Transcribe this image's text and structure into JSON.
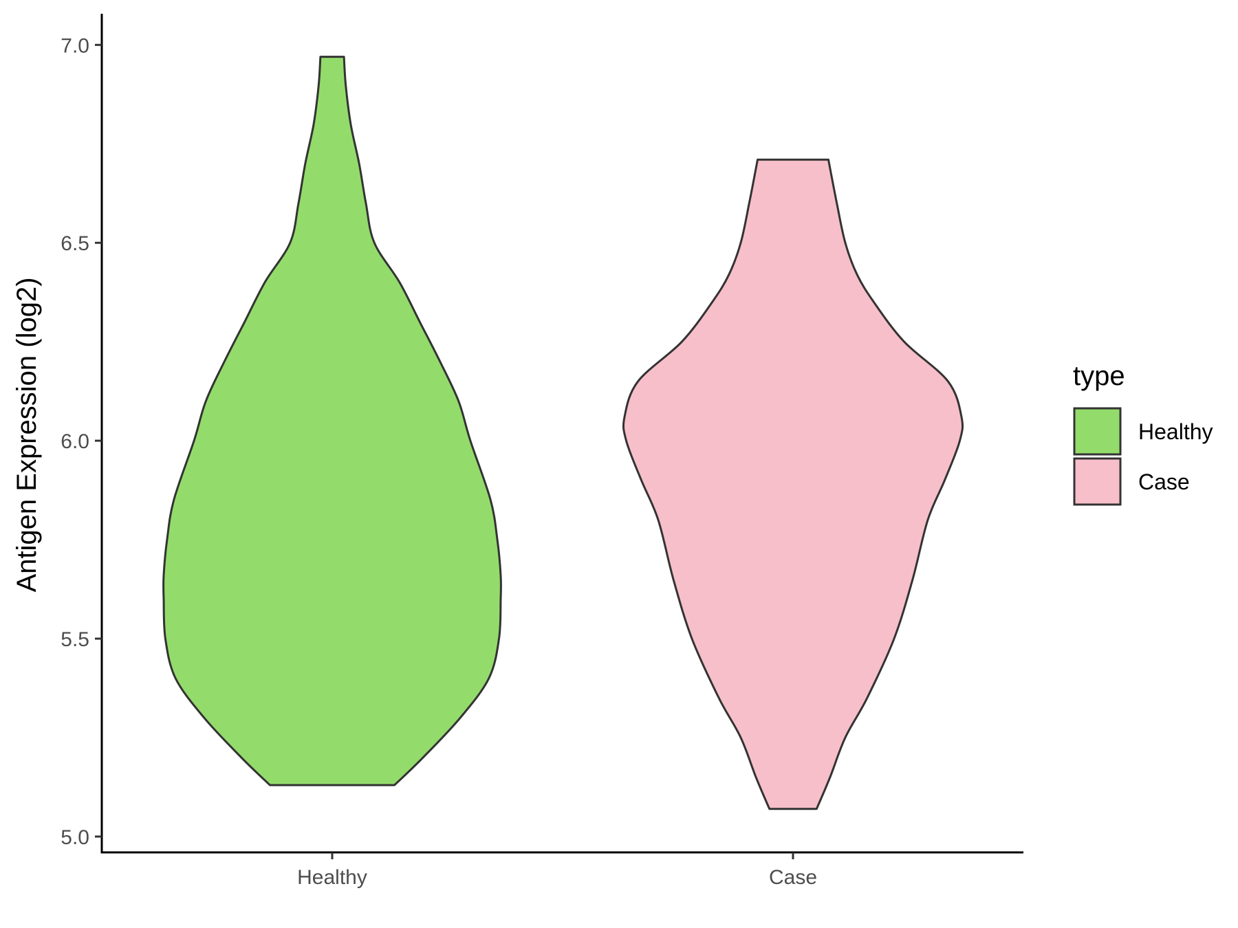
{
  "chart_data": {
    "type": "violin",
    "xlabel": "",
    "ylabel": "Antigen Expression (log2)",
    "ylim": [
      4.96,
      7.07
    ],
    "yticks": [
      5.0,
      5.5,
      6.0,
      6.5,
      7.0
    ],
    "y_tick_labels": [
      "5.0",
      "5.5",
      "6.0",
      "6.5",
      "7.0"
    ],
    "categories": [
      "Healthy",
      "Case"
    ],
    "legend": {
      "title": "type",
      "position": "right",
      "entries": [
        "Healthy",
        "Case"
      ]
    },
    "grid": false,
    "series": [
      {
        "name": "Healthy",
        "color": "#93dc6b",
        "min": 5.13,
        "max": 6.97,
        "density": [
          [
            5.13,
            0.37
          ],
          [
            5.2,
            0.54
          ],
          [
            5.3,
            0.76
          ],
          [
            5.4,
            0.93
          ],
          [
            5.5,
            0.99
          ],
          [
            5.6,
            1.0
          ],
          [
            5.66,
            1.0
          ],
          [
            5.75,
            0.98
          ],
          [
            5.85,
            0.94
          ],
          [
            6.0,
            0.82
          ],
          [
            6.1,
            0.75
          ],
          [
            6.2,
            0.64
          ],
          [
            6.3,
            0.52
          ],
          [
            6.4,
            0.4
          ],
          [
            6.5,
            0.25
          ],
          [
            6.6,
            0.2
          ],
          [
            6.7,
            0.16
          ],
          [
            6.8,
            0.11
          ],
          [
            6.9,
            0.08
          ],
          [
            6.97,
            0.07
          ]
        ]
      },
      {
        "name": "Case",
        "color": "#f7bfca",
        "min": 5.07,
        "max": 6.71,
        "density": [
          [
            5.07,
            0.14
          ],
          [
            5.15,
            0.22
          ],
          [
            5.25,
            0.31
          ],
          [
            5.35,
            0.44
          ],
          [
            5.5,
            0.6
          ],
          [
            5.65,
            0.71
          ],
          [
            5.8,
            0.8
          ],
          [
            5.9,
            0.9
          ],
          [
            6.0,
            0.99
          ],
          [
            6.06,
            1.0
          ],
          [
            6.15,
            0.92
          ],
          [
            6.25,
            0.66
          ],
          [
            6.35,
            0.48
          ],
          [
            6.42,
            0.38
          ],
          [
            6.5,
            0.31
          ],
          [
            6.6,
            0.26
          ],
          [
            6.71,
            0.21
          ]
        ]
      }
    ]
  }
}
